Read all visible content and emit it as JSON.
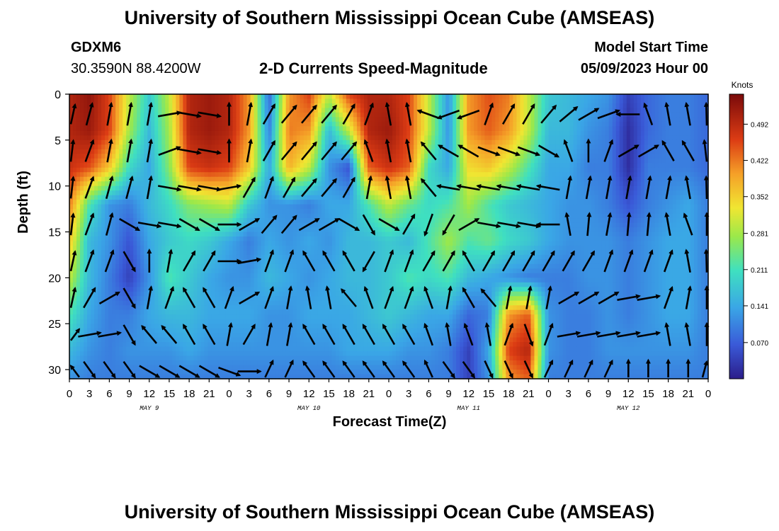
{
  "title_top": "University of Southern Mississippi Ocean Cube (AMSEAS)",
  "title_bottom": "University of Southern Mississippi Ocean Cube (AMSEAS)",
  "station": {
    "name": "GDXM6",
    "coords": "30.3590N  88.4200W"
  },
  "model_start": {
    "label": "Model Start Time",
    "value": "05/09/2023 Hour 00"
  },
  "chart_data": {
    "type": "heatmap",
    "title": "2-D Currents Speed-Magnitude",
    "xlabel": "Forecast Time(Z)",
    "ylabel": "Depth (ft)",
    "x_tick_labels": [
      "0",
      "3",
      "6",
      "9",
      "12",
      "15",
      "18",
      "21",
      "0",
      "3",
      "6",
      "9",
      "12",
      "15",
      "18",
      "21",
      "0",
      "3",
      "6",
      "9",
      "12",
      "15",
      "18",
      "21",
      "0",
      "3",
      "6",
      "9",
      "12",
      "15",
      "18",
      "21",
      "0"
    ],
    "x_range_hours": [
      0,
      96
    ],
    "day_labels": [
      {
        "label": "MAY 9",
        "hour": 12
      },
      {
        "label": "MAY 10",
        "hour": 36
      },
      {
        "label": "MAY 11",
        "hour": 60
      },
      {
        "label": "MAY 12",
        "hour": 84
      }
    ],
    "y_ticks": [
      "0",
      "5",
      "10",
      "15",
      "20",
      "25",
      "30"
    ],
    "y_range": [
      0,
      31
    ],
    "y_inverted": true,
    "colorbar": {
      "unit": "Knots",
      "ticks": [
        "0.070",
        "0.141",
        "0.211",
        "0.281",
        "0.352",
        "0.422",
        "0.492"
      ],
      "range": [
        0,
        0.55
      ],
      "colormap": "jet"
    },
    "speed_knots_grid": {
      "depths_ft": [
        0,
        4,
        8,
        12,
        16,
        20,
        24,
        28,
        31
      ],
      "hours": [
        0,
        3,
        6,
        9,
        12,
        15,
        18,
        21,
        24,
        27,
        30,
        33,
        36,
        39,
        42,
        45,
        48,
        51,
        54,
        57,
        60,
        63,
        66,
        69,
        72,
        75,
        78,
        81,
        84,
        87,
        90,
        93,
        96
      ],
      "rows": [
        [
          0.5,
          0.53,
          0.46,
          0.3,
          0.18,
          0.3,
          0.5,
          0.52,
          0.5,
          0.4,
          0.08,
          0.4,
          0.46,
          0.3,
          0.46,
          0.5,
          0.5,
          0.46,
          0.3,
          0.12,
          0.4,
          0.45,
          0.42,
          0.3,
          0.18,
          0.16,
          0.14,
          0.12,
          0.04,
          0.08,
          0.1,
          0.1,
          0.08
        ],
        [
          0.5,
          0.52,
          0.46,
          0.28,
          0.16,
          0.28,
          0.5,
          0.52,
          0.5,
          0.4,
          0.1,
          0.42,
          0.4,
          0.16,
          0.3,
          0.5,
          0.52,
          0.46,
          0.3,
          0.12,
          0.4,
          0.44,
          0.4,
          0.3,
          0.16,
          0.16,
          0.12,
          0.1,
          0.02,
          0.08,
          0.1,
          0.1,
          0.08
        ],
        [
          0.48,
          0.45,
          0.36,
          0.2,
          0.14,
          0.26,
          0.46,
          0.48,
          0.46,
          0.36,
          0.14,
          0.38,
          0.3,
          0.12,
          0.06,
          0.44,
          0.48,
          0.44,
          0.2,
          0.14,
          0.34,
          0.36,
          0.3,
          0.22,
          0.14,
          0.14,
          0.1,
          0.1,
          0.02,
          0.1,
          0.1,
          0.1,
          0.08
        ],
        [
          0.42,
          0.22,
          0.12,
          0.1,
          0.16,
          0.2,
          0.26,
          0.28,
          0.3,
          0.18,
          0.12,
          0.12,
          0.1,
          0.14,
          0.14,
          0.22,
          0.3,
          0.24,
          0.2,
          0.22,
          0.28,
          0.22,
          0.18,
          0.16,
          0.14,
          0.12,
          0.12,
          0.1,
          0.06,
          0.1,
          0.12,
          0.14,
          0.1
        ],
        [
          0.36,
          0.16,
          0.12,
          0.06,
          0.14,
          0.18,
          0.2,
          0.18,
          0.14,
          0.1,
          0.14,
          0.12,
          0.14,
          0.12,
          0.16,
          0.16,
          0.18,
          0.16,
          0.22,
          0.28,
          0.22,
          0.24,
          0.2,
          0.18,
          0.14,
          0.12,
          0.12,
          0.12,
          0.1,
          0.12,
          0.14,
          0.14,
          0.1
        ],
        [
          0.3,
          0.16,
          0.1,
          0.04,
          0.12,
          0.22,
          0.18,
          0.14,
          0.12,
          0.12,
          0.16,
          0.14,
          0.12,
          0.14,
          0.16,
          0.16,
          0.18,
          0.22,
          0.2,
          0.22,
          0.16,
          0.14,
          0.12,
          0.1,
          0.1,
          0.1,
          0.12,
          0.12,
          0.1,
          0.12,
          0.14,
          0.14,
          0.1
        ],
        [
          0.22,
          0.14,
          0.1,
          0.1,
          0.14,
          0.16,
          0.16,
          0.14,
          0.14,
          0.14,
          0.12,
          0.12,
          0.14,
          0.14,
          0.14,
          0.16,
          0.18,
          0.16,
          0.14,
          0.14,
          0.08,
          0.1,
          0.4,
          0.44,
          0.12,
          0.1,
          0.1,
          0.12,
          0.1,
          0.12,
          0.14,
          0.14,
          0.1
        ],
        [
          0.16,
          0.12,
          0.1,
          0.12,
          0.12,
          0.12,
          0.14,
          0.12,
          0.12,
          0.12,
          0.12,
          0.12,
          0.12,
          0.12,
          0.14,
          0.14,
          0.14,
          0.12,
          0.12,
          0.1,
          0.04,
          0.14,
          0.46,
          0.5,
          0.12,
          0.1,
          0.1,
          0.12,
          0.12,
          0.12,
          0.12,
          0.12,
          0.1
        ],
        [
          0.12,
          0.1,
          0.1,
          0.1,
          0.1,
          0.1,
          0.1,
          0.1,
          0.1,
          0.1,
          0.1,
          0.1,
          0.1,
          0.1,
          0.1,
          0.1,
          0.1,
          0.1,
          0.1,
          0.1,
          0.04,
          0.12,
          0.4,
          0.44,
          0.1,
          0.1,
          0.1,
          0.1,
          0.1,
          0.1,
          0.1,
          0.1,
          0.1
        ]
      ]
    },
    "vectors": {
      "depths_ft": [
        0,
        4,
        8,
        12,
        16,
        20,
        24,
        28
      ],
      "hours": [
        0,
        3,
        6,
        9,
        12,
        15,
        18,
        21,
        24,
        27,
        30,
        33,
        36,
        39,
        42,
        45,
        48,
        51,
        54,
        57,
        60,
        63,
        66,
        69,
        72,
        75,
        78,
        81,
        84,
        87,
        90,
        93,
        96
      ],
      "direction_deg": [
        [
          30,
          15,
          10,
          10,
          10,
          80,
          100,
          100,
          0,
          10,
          30,
          40,
          40,
          40,
          30,
          20,
          350,
          350,
          290,
          250,
          250,
          20,
          30,
          30,
          40,
          50,
          60,
          70,
          270,
          340,
          350,
          350,
          350
        ],
        [
          20,
          20,
          10,
          10,
          10,
          70,
          100,
          100,
          0,
          10,
          30,
          40,
          40,
          40,
          40,
          340,
          350,
          350,
          320,
          300,
          300,
          110,
          110,
          110,
          120,
          340,
          0,
          20,
          60,
          60,
          330,
          330,
          340
        ],
        [
          20,
          20,
          15,
          15,
          10,
          100,
          100,
          100,
          80,
          30,
          20,
          30,
          40,
          40,
          30,
          10,
          350,
          350,
          320,
          280,
          280,
          280,
          280,
          280,
          280,
          10,
          10,
          10,
          10,
          10,
          10,
          350,
          350
        ],
        [
          20,
          20,
          15,
          120,
          100,
          100,
          120,
          120,
          90,
          60,
          40,
          40,
          60,
          60,
          120,
          150,
          120,
          30,
          200,
          210,
          60,
          100,
          100,
          100,
          270,
          350,
          5,
          10,
          5,
          5,
          350,
          340,
          5
        ],
        [
          30,
          20,
          20,
          150,
          0,
          10,
          30,
          30,
          90,
          80,
          20,
          20,
          330,
          330,
          330,
          210,
          20,
          20,
          30,
          30,
          330,
          30,
          30,
          30,
          30,
          30,
          30,
          20,
          20,
          20,
          20,
          350,
          350
        ],
        [
          30,
          30,
          60,
          150,
          10,
          20,
          330,
          330,
          20,
          60,
          20,
          10,
          350,
          350,
          320,
          340,
          20,
          20,
          340,
          10,
          330,
          320,
          10,
          10,
          10,
          60,
          60,
          60,
          80,
          80,
          20,
          10,
          0
        ],
        [
          60,
          80,
          80,
          150,
          320,
          320,
          330,
          330,
          10,
          30,
          10,
          10,
          330,
          330,
          330,
          330,
          330,
          330,
          340,
          350,
          340,
          350,
          20,
          160,
          20,
          80,
          80,
          80,
          80,
          80,
          350,
          350,
          0
        ],
        [
          300,
          150,
          150,
          150,
          120,
          120,
          120,
          120,
          110,
          90,
          20,
          20,
          330,
          330,
          330,
          330,
          330,
          330,
          340,
          150,
          150,
          160,
          160,
          160,
          20,
          20,
          20,
          20,
          0,
          0,
          0,
          0,
          30
        ]
      ]
    }
  }
}
